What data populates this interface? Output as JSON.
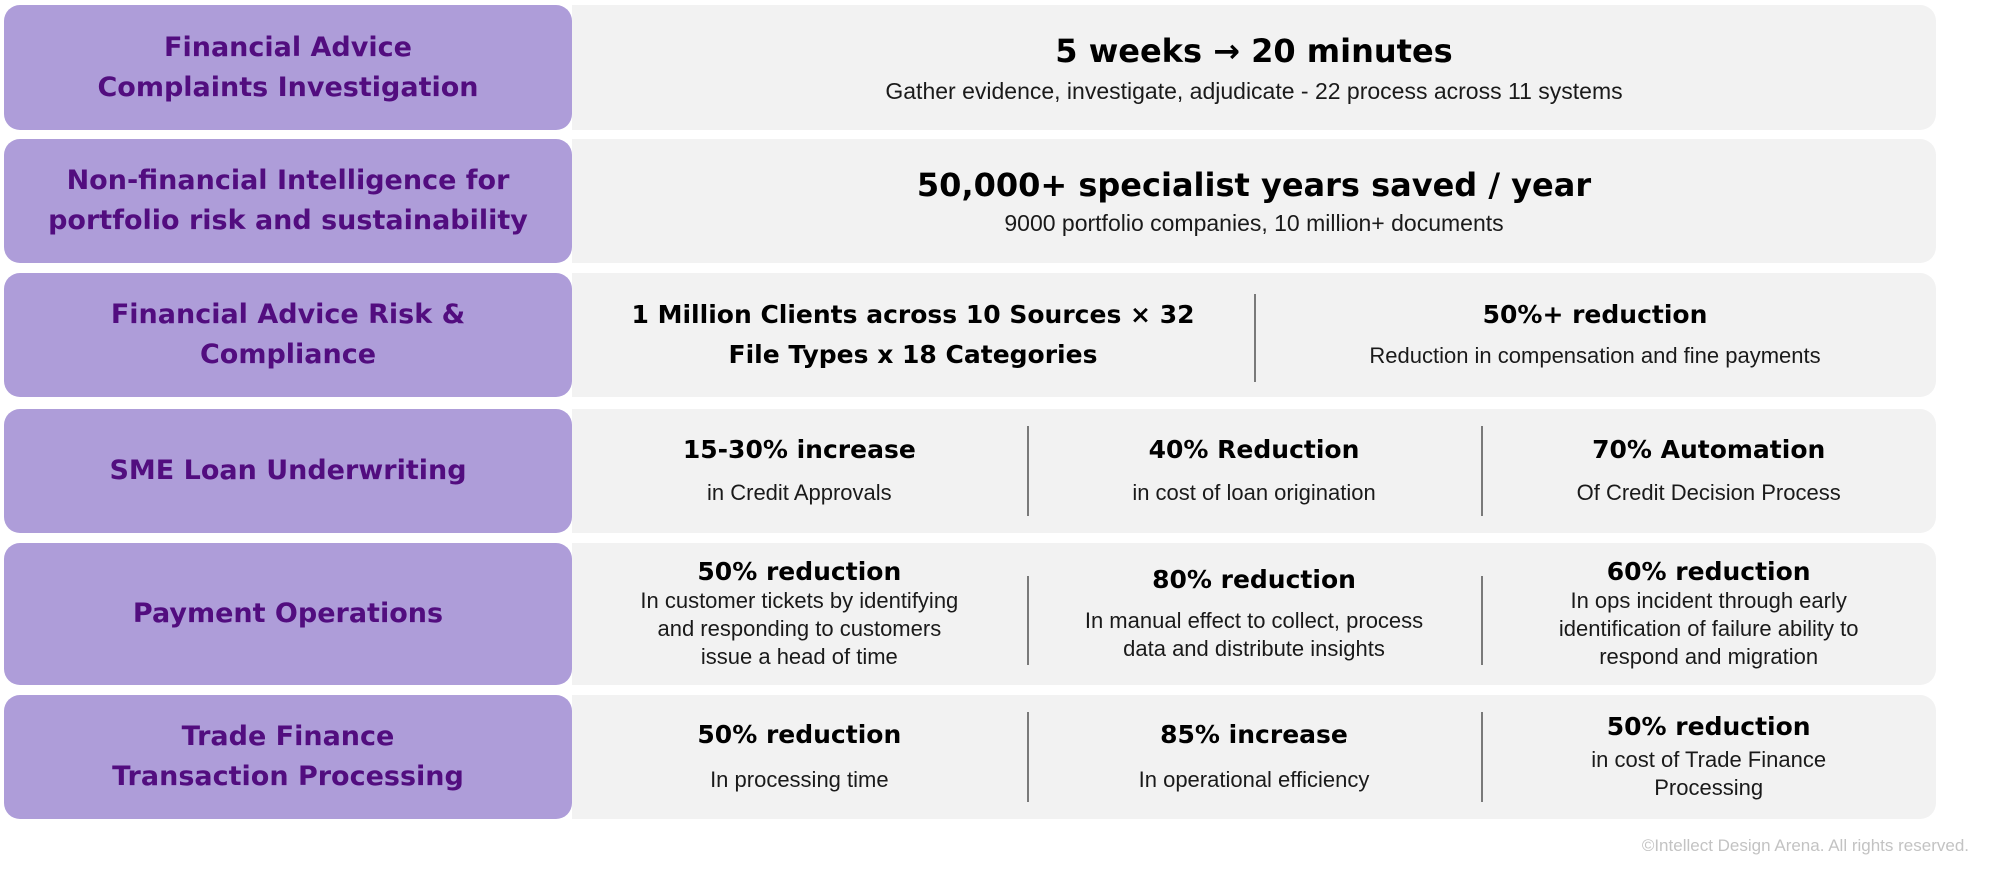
{
  "rows": [
    {
      "label": "Financial Advice\nComplaints Investigation",
      "metrics": [
        {
          "head": "5 weeks → 20 minutes",
          "desc": "Gather evidence, investigate, adjudicate - 22 process across 11 systems"
        }
      ]
    },
    {
      "label": "Non-financial Intelligence for\nportfolio risk and sustainability",
      "metrics": [
        {
          "head": "50,000+ specialist years saved / year",
          "desc": "9000 portfolio companies, 10 million+ documents"
        }
      ]
    },
    {
      "label": "Financial Advice Risk &\nCompliance",
      "metrics": [
        {
          "head": "1 Million Clients across 10 Sources × 32\nFile Types x 18 Categories",
          "desc": ""
        },
        {
          "head": "50%+ reduction",
          "desc": "Reduction in compensation and fine payments"
        }
      ]
    },
    {
      "label": "SME Loan Underwriting",
      "metrics": [
        {
          "head": "15-30% increase",
          "desc": "in Credit Approvals"
        },
        {
          "head": "40% Reduction",
          "desc": "in cost of loan origination"
        },
        {
          "head": "70% Automation",
          "desc": "Of Credit Decision Process"
        }
      ]
    },
    {
      "label": "Payment Operations",
      "metrics": [
        {
          "head": "50% reduction",
          "desc": "In customer tickets by identifying\nand responding to customers\nissue a head of time"
        },
        {
          "head": "80% reduction",
          "desc": "In manual effect to collect, process\ndata and distribute insights"
        },
        {
          "head": "60% reduction",
          "desc": "In ops incident through early\nidentification of failure ability to\nrespond and migration"
        }
      ]
    },
    {
      "label": "Trade Finance\nTransaction Processing",
      "metrics": [
        {
          "head": "50% reduction",
          "desc": "In processing time"
        },
        {
          "head": "85% increase",
          "desc": "In operational efficiency"
        },
        {
          "head": "50% reduction",
          "desc": "in cost of Trade Finance\nProcessing"
        }
      ]
    }
  ],
  "footer": "©Intellect Design Arena. All rights reserved.",
  "colors": {
    "label_bg": "#ae9dd9",
    "label_text": "#520d7f",
    "panel_bg": "#f2f2f2"
  }
}
